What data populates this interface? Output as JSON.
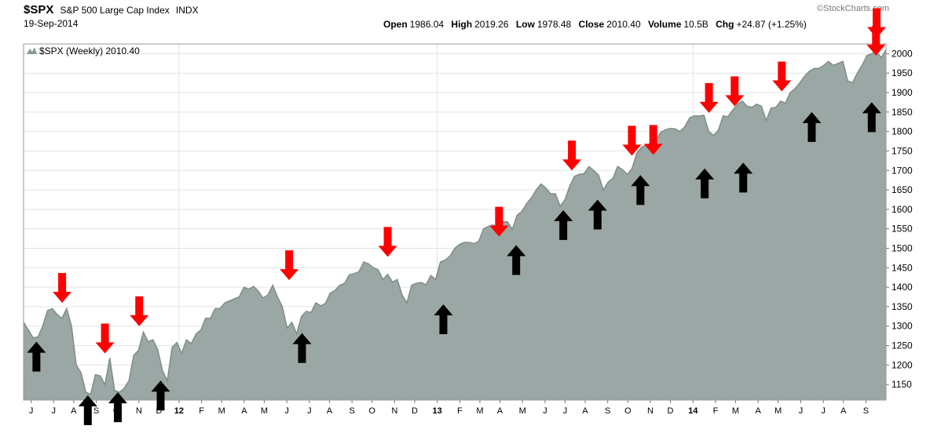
{
  "header": {
    "ticker": "$SPX",
    "name": "S&P 500 Large Cap Index",
    "exchange": "INDX",
    "date": "19-Sep-2014",
    "watermark": "StockCharts.com",
    "open_label": "Open",
    "open": "1986.04",
    "high_label": "High",
    "high": "2019.26",
    "low_label": "Low",
    "low": "1978.48",
    "close_label": "Close",
    "close": "2010.40",
    "volume_label": "Volume",
    "volume": "10.5B",
    "chg_label": "Chg",
    "chg": "+24.87 (+1.25%)"
  },
  "chart_data": {
    "type": "area",
    "legend": "$SPX (Weekly) 2010.40",
    "legend_position": "top-left",
    "grid": true,
    "ylim": [
      1110,
      2025
    ],
    "xlim": [
      0,
      172
    ],
    "y_ticks": [
      1150,
      1200,
      1250,
      1300,
      1350,
      1400,
      1450,
      1500,
      1550,
      1600,
      1650,
      1700,
      1750,
      1800,
      1850,
      1900,
      1950,
      2000
    ],
    "x_ticks": [
      {
        "label": "J",
        "x": 1.5
      },
      {
        "label": "J",
        "x": 6
      },
      {
        "label": "A",
        "x": 10
      },
      {
        "label": "S",
        "x": 14.5
      },
      {
        "label": "O",
        "x": 18.5
      },
      {
        "label": "N",
        "x": 23
      },
      {
        "label": "D",
        "x": 27
      },
      {
        "label": "12",
        "x": 31,
        "bold": true
      },
      {
        "label": "F",
        "x": 35.5
      },
      {
        "label": "M",
        "x": 39.5
      },
      {
        "label": "A",
        "x": 44
      },
      {
        "label": "M",
        "x": 48
      },
      {
        "label": "J",
        "x": 52.5
      },
      {
        "label": "J",
        "x": 57
      },
      {
        "label": "A",
        "x": 61
      },
      {
        "label": "S",
        "x": 65.5
      },
      {
        "label": "O",
        "x": 69.5
      },
      {
        "label": "N",
        "x": 74
      },
      {
        "label": "D",
        "x": 78
      },
      {
        "label": "13",
        "x": 82.5,
        "bold": true
      },
      {
        "label": "F",
        "x": 87
      },
      {
        "label": "M",
        "x": 91
      },
      {
        "label": "A",
        "x": 95
      },
      {
        "label": "M",
        "x": 99.5
      },
      {
        "label": "J",
        "x": 104
      },
      {
        "label": "J",
        "x": 108
      },
      {
        "label": "A",
        "x": 112
      },
      {
        "label": "S",
        "x": 116.5
      },
      {
        "label": "O",
        "x": 120.5
      },
      {
        "label": "N",
        "x": 125
      },
      {
        "label": "D",
        "x": 129
      },
      {
        "label": "14",
        "x": 133.5,
        "bold": true
      },
      {
        "label": "F",
        "x": 138
      },
      {
        "label": "M",
        "x": 142
      },
      {
        "label": "A",
        "x": 146.5
      },
      {
        "label": "M",
        "x": 150.5
      },
      {
        "label": "J",
        "x": 155
      },
      {
        "label": "J",
        "x": 159.5
      },
      {
        "label": "A",
        "x": 163.5
      },
      {
        "label": "S",
        "x": 168
      }
    ],
    "vertical_gridlines_at": [
      31,
      82.5,
      133.5
    ],
    "series": [
      {
        "points": [
          [
            0,
            1310
          ],
          [
            1,
            1290
          ],
          [
            2,
            1270
          ],
          [
            3,
            1272
          ],
          [
            4,
            1300
          ],
          [
            5,
            1340
          ],
          [
            6,
            1345
          ],
          [
            7,
            1330
          ],
          [
            8,
            1320
          ],
          [
            9,
            1345
          ],
          [
            10,
            1300
          ],
          [
            11,
            1200
          ],
          [
            12,
            1180
          ],
          [
            13,
            1130
          ],
          [
            14,
            1125
          ],
          [
            15,
            1175
          ],
          [
            16,
            1172
          ],
          [
            17,
            1150
          ],
          [
            18,
            1218
          ],
          [
            19,
            1135
          ],
          [
            20,
            1130
          ],
          [
            21,
            1140
          ],
          [
            22,
            1160
          ],
          [
            23,
            1225
          ],
          [
            24,
            1238
          ],
          [
            25,
            1285
          ],
          [
            26,
            1260
          ],
          [
            27,
            1265
          ],
          [
            28,
            1240
          ],
          [
            29,
            1185
          ],
          [
            30,
            1160
          ],
          [
            31,
            1245
          ],
          [
            32,
            1258
          ],
          [
            33,
            1230
          ],
          [
            34,
            1265
          ],
          [
            35,
            1255
          ],
          [
            36,
            1280
          ],
          [
            37,
            1290
          ],
          [
            38,
            1320
          ],
          [
            39,
            1320
          ],
          [
            40,
            1345
          ],
          [
            41,
            1345
          ],
          [
            42,
            1360
          ],
          [
            43,
            1365
          ],
          [
            44,
            1370
          ],
          [
            45,
            1375
          ],
          [
            46,
            1400
          ],
          [
            47,
            1395
          ],
          [
            48,
            1402
          ],
          [
            49,
            1390
          ],
          [
            50,
            1372
          ],
          [
            51,
            1380
          ],
          [
            52,
            1405
          ],
          [
            53,
            1375
          ],
          [
            54,
            1350
          ],
          [
            55,
            1295
          ],
          [
            56,
            1310
          ],
          [
            57,
            1280
          ],
          [
            58,
            1325
          ],
          [
            59,
            1338
          ],
          [
            60,
            1335
          ],
          [
            61,
            1360
          ],
          [
            62,
            1352
          ],
          [
            63,
            1358
          ],
          [
            64,
            1385
          ],
          [
            65,
            1392
          ],
          [
            66,
            1405
          ],
          [
            67,
            1410
          ],
          [
            68,
            1432
          ],
          [
            69,
            1435
          ],
          [
            70,
            1440
          ],
          [
            71,
            1465
          ],
          [
            72,
            1460
          ],
          [
            73,
            1450
          ],
          [
            74,
            1445
          ],
          [
            75,
            1420
          ],
          [
            76,
            1433
          ],
          [
            77,
            1413
          ],
          [
            78,
            1420
          ],
          [
            79,
            1380
          ],
          [
            80,
            1360
          ],
          [
            81,
            1405
          ],
          [
            82,
            1410
          ],
          [
            83,
            1412
          ],
          [
            84,
            1406
          ],
          [
            85,
            1430
          ],
          [
            86,
            1420
          ],
          [
            87,
            1465
          ],
          [
            88,
            1470
          ],
          [
            89,
            1480
          ],
          [
            90,
            1500
          ],
          [
            91,
            1510
          ],
          [
            92,
            1515
          ],
          [
            93,
            1515
          ],
          [
            94,
            1512
          ],
          [
            95,
            1518
          ],
          [
            96,
            1550
          ],
          [
            97,
            1556
          ],
          [
            98,
            1560
          ],
          [
            99,
            1555
          ],
          [
            100,
            1568
          ],
          [
            101,
            1568
          ],
          [
            102,
            1548
          ],
          [
            103,
            1585
          ],
          [
            104,
            1595
          ],
          [
            105,
            1615
          ],
          [
            106,
            1630
          ],
          [
            107,
            1650
          ],
          [
            108,
            1665
          ],
          [
            109,
            1655
          ],
          [
            110,
            1640
          ],
          [
            111,
            1640
          ],
          [
            112,
            1608
          ],
          [
            113,
            1625
          ],
          [
            114,
            1660
          ],
          [
            115,
            1685
          ],
          [
            116,
            1690
          ],
          [
            117,
            1692
          ],
          [
            118,
            1710
          ],
          [
            119,
            1700
          ],
          [
            120,
            1688
          ],
          [
            121,
            1650
          ],
          [
            122,
            1670
          ],
          [
            123,
            1680
          ],
          [
            124,
            1710
          ],
          [
            125,
            1702
          ],
          [
            126,
            1690
          ],
          [
            127,
            1705
          ],
          [
            128,
            1745
          ],
          [
            129,
            1760
          ],
          [
            130,
            1765
          ],
          [
            131,
            1770
          ],
          [
            132,
            1778
          ],
          [
            133,
            1798
          ],
          [
            134,
            1805
          ],
          [
            135,
            1808
          ],
          [
            136,
            1807
          ],
          [
            137,
            1800
          ],
          [
            138,
            1812
          ],
          [
            139,
            1835
          ],
          [
            140,
            1840
          ],
          [
            141,
            1840
          ],
          [
            142,
            1842
          ],
          [
            143,
            1800
          ],
          [
            144,
            1790
          ],
          [
            145,
            1803
          ],
          [
            146,
            1840
          ],
          [
            147,
            1838
          ],
          [
            148,
            1855
          ],
          [
            149,
            1870
          ],
          [
            150,
            1878
          ],
          [
            151,
            1865
          ],
          [
            152,
            1862
          ],
          [
            153,
            1870
          ],
          [
            154,
            1865
          ],
          [
            155,
            1828
          ],
          [
            156,
            1860
          ],
          [
            157,
            1862
          ],
          [
            158,
            1878
          ],
          [
            159,
            1873
          ],
          [
            160,
            1900
          ],
          [
            161,
            1910
          ],
          [
            162,
            1925
          ],
          [
            163,
            1942
          ],
          [
            164,
            1955
          ],
          [
            165,
            1962
          ],
          [
            166,
            1962
          ],
          [
            167,
            1970
          ],
          [
            168,
            1980
          ],
          [
            169,
            1970
          ],
          [
            170,
            1975
          ],
          [
            171,
            1980
          ],
          [
            172,
            1930
          ],
          [
            173,
            1925
          ],
          [
            174,
            1950
          ],
          [
            175,
            1970
          ],
          [
            176,
            1995
          ],
          [
            177,
            2000
          ],
          [
            178,
            2005
          ],
          [
            179,
            1990
          ],
          [
            180,
            2010
          ]
        ]
      }
    ],
    "annotations": {
      "arrows_down": [
        [
          9,
          1360
        ],
        [
          19,
          1230
        ],
        [
          27,
          1300
        ],
        [
          62,
          1418
        ],
        [
          85,
          1478
        ],
        [
          111,
          1530
        ],
        [
          128,
          1700
        ],
        [
          142,
          1738
        ],
        [
          147,
          1740
        ],
        [
          160,
          1848
        ],
        [
          166,
          1865
        ],
        [
          177,
          1903
        ],
        [
          199,
          1995
        ],
        [
          202,
          2040
        ]
      ],
      "arrows_up": [
        [
          3,
          1260
        ],
        [
          15,
          1122
        ],
        [
          22,
          1130
        ],
        [
          32,
          1160
        ],
        [
          65,
          1282
        ],
        [
          98,
          1356
        ],
        [
          115,
          1508
        ],
        [
          126,
          1598
        ],
        [
          134,
          1625
        ],
        [
          144,
          1688
        ],
        [
          159,
          1705
        ],
        [
          168,
          1720
        ],
        [
          184,
          1850
        ],
        [
          198,
          1875
        ]
      ]
    }
  }
}
